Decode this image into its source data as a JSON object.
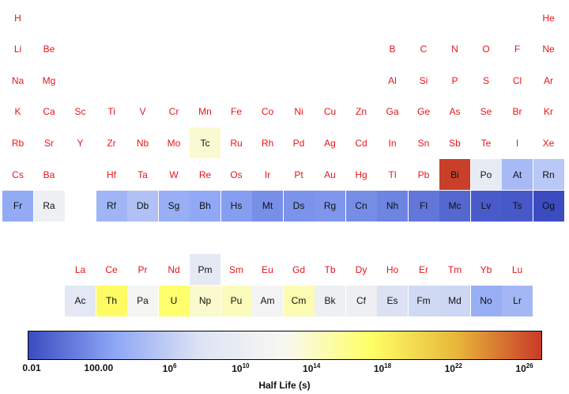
{
  "chart_data": {
    "type": "heatmap",
    "title": "",
    "colorbar": {
      "label": "Half Life (s)",
      "scale": "log10",
      "range_log10": [
        -2,
        27
      ],
      "ticks": [
        {
          "value_log10": -2,
          "label": "0.01"
        },
        {
          "value_log10": 2,
          "label": "100.00"
        },
        {
          "value_log10": 6,
          "base": "10",
          "exp": "6"
        },
        {
          "value_log10": 10,
          "base": "10",
          "exp": "10"
        },
        {
          "value_log10": 14,
          "base": "10",
          "exp": "14"
        },
        {
          "value_log10": 18,
          "base": "10",
          "exp": "18"
        },
        {
          "value_log10": 22,
          "base": "10",
          "exp": "22"
        },
        {
          "value_log10": 26,
          "base": "10",
          "exp": "26"
        }
      ],
      "colormap": [
        "#3b4cc0",
        "#8da6f5",
        "#dde3f4",
        "#f8f8f2",
        "#ffff66",
        "#e8b83a",
        "#c93a28"
      ]
    },
    "elements": [
      {
        "sym": "H",
        "row": 1,
        "col": 1,
        "stable": true
      },
      {
        "sym": "He",
        "row": 1,
        "col": 18,
        "stable": true
      },
      {
        "sym": "Li",
        "row": 2,
        "col": 1,
        "stable": true
      },
      {
        "sym": "Be",
        "row": 2,
        "col": 2,
        "stable": true
      },
      {
        "sym": "B",
        "row": 2,
        "col": 13,
        "stable": true
      },
      {
        "sym": "C",
        "row": 2,
        "col": 14,
        "stable": true
      },
      {
        "sym": "N",
        "row": 2,
        "col": 15,
        "stable": true
      },
      {
        "sym": "O",
        "row": 2,
        "col": 16,
        "stable": true
      },
      {
        "sym": "F",
        "row": 2,
        "col": 17,
        "stable": true
      },
      {
        "sym": "Ne",
        "row": 2,
        "col": 18,
        "stable": true
      },
      {
        "sym": "Na",
        "row": 3,
        "col": 1,
        "stable": true
      },
      {
        "sym": "Mg",
        "row": 3,
        "col": 2,
        "stable": true
      },
      {
        "sym": "Al",
        "row": 3,
        "col": 13,
        "stable": true
      },
      {
        "sym": "Si",
        "row": 3,
        "col": 14,
        "stable": true
      },
      {
        "sym": "P",
        "row": 3,
        "col": 15,
        "stable": true
      },
      {
        "sym": "S",
        "row": 3,
        "col": 16,
        "stable": true
      },
      {
        "sym": "Cl",
        "row": 3,
        "col": 17,
        "stable": true
      },
      {
        "sym": "Ar",
        "row": 3,
        "col": 18,
        "stable": true
      },
      {
        "sym": "K",
        "row": 4,
        "col": 1,
        "stable": true
      },
      {
        "sym": "Ca",
        "row": 4,
        "col": 2,
        "stable": true
      },
      {
        "sym": "Sc",
        "row": 4,
        "col": 3,
        "stable": true
      },
      {
        "sym": "Ti",
        "row": 4,
        "col": 4,
        "stable": true
      },
      {
        "sym": "V",
        "row": 4,
        "col": 5,
        "stable": true
      },
      {
        "sym": "Cr",
        "row": 4,
        "col": 6,
        "stable": true
      },
      {
        "sym": "Mn",
        "row": 4,
        "col": 7,
        "stable": true
      },
      {
        "sym": "Fe",
        "row": 4,
        "col": 8,
        "stable": true
      },
      {
        "sym": "Co",
        "row": 4,
        "col": 9,
        "stable": true
      },
      {
        "sym": "Ni",
        "row": 4,
        "col": 10,
        "stable": true
      },
      {
        "sym": "Cu",
        "row": 4,
        "col": 11,
        "stable": true
      },
      {
        "sym": "Zn",
        "row": 4,
        "col": 12,
        "stable": true
      },
      {
        "sym": "Ga",
        "row": 4,
        "col": 13,
        "stable": true
      },
      {
        "sym": "Ge",
        "row": 4,
        "col": 14,
        "stable": true
      },
      {
        "sym": "As",
        "row": 4,
        "col": 15,
        "stable": true
      },
      {
        "sym": "Se",
        "row": 4,
        "col": 16,
        "stable": true
      },
      {
        "sym": "Br",
        "row": 4,
        "col": 17,
        "stable": true
      },
      {
        "sym": "Kr",
        "row": 4,
        "col": 18,
        "stable": true
      },
      {
        "sym": "Rb",
        "row": 5,
        "col": 1,
        "stable": true
      },
      {
        "sym": "Sr",
        "row": 5,
        "col": 2,
        "stable": true
      },
      {
        "sym": "Y",
        "row": 5,
        "col": 3,
        "stable": true
      },
      {
        "sym": "Zr",
        "row": 5,
        "col": 4,
        "stable": true
      },
      {
        "sym": "Nb",
        "row": 5,
        "col": 5,
        "stable": true
      },
      {
        "sym": "Mo",
        "row": 5,
        "col": 6,
        "stable": true
      },
      {
        "sym": "Tc",
        "row": 5,
        "col": 7,
        "half_life_log10": 13.6
      },
      {
        "sym": "Ru",
        "row": 5,
        "col": 8,
        "stable": true
      },
      {
        "sym": "Rh",
        "row": 5,
        "col": 9,
        "stable": true
      },
      {
        "sym": "Pd",
        "row": 5,
        "col": 10,
        "stable": true
      },
      {
        "sym": "Ag",
        "row": 5,
        "col": 11,
        "stable": true
      },
      {
        "sym": "Cd",
        "row": 5,
        "col": 12,
        "stable": true
      },
      {
        "sym": "In",
        "row": 5,
        "col": 13,
        "stable": true
      },
      {
        "sym": "Sn",
        "row": 5,
        "col": 14,
        "stable": true
      },
      {
        "sym": "Sb",
        "row": 5,
        "col": 15,
        "stable": true
      },
      {
        "sym": "Te",
        "row": 5,
        "col": 16,
        "stable": true
      },
      {
        "sym": "I",
        "row": 5,
        "col": 17,
        "stable": true
      },
      {
        "sym": "Xe",
        "row": 5,
        "col": 18,
        "stable": true
      },
      {
        "sym": "Cs",
        "row": 6,
        "col": 1,
        "stable": true
      },
      {
        "sym": "Ba",
        "row": 6,
        "col": 2,
        "stable": true
      },
      {
        "sym": "Hf",
        "row": 6,
        "col": 4,
        "stable": true
      },
      {
        "sym": "Ta",
        "row": 6,
        "col": 5,
        "stable": true
      },
      {
        "sym": "W",
        "row": 6,
        "col": 6,
        "stable": true
      },
      {
        "sym": "Re",
        "row": 6,
        "col": 7,
        "stable": true
      },
      {
        "sym": "Os",
        "row": 6,
        "col": 8,
        "stable": true
      },
      {
        "sym": "Ir",
        "row": 6,
        "col": 9,
        "stable": true
      },
      {
        "sym": "Pt",
        "row": 6,
        "col": 10,
        "stable": true
      },
      {
        "sym": "Au",
        "row": 6,
        "col": 11,
        "stable": true
      },
      {
        "sym": "Hg",
        "row": 6,
        "col": 12,
        "stable": true
      },
      {
        "sym": "Tl",
        "row": 6,
        "col": 13,
        "stable": true
      },
      {
        "sym": "Pb",
        "row": 6,
        "col": 14,
        "stable": true
      },
      {
        "sym": "Bi",
        "row": 6,
        "col": 15,
        "half_life_log10": 26.8
      },
      {
        "sym": "Po",
        "row": 6,
        "col": 16,
        "half_life_log10": 9.4
      },
      {
        "sym": "At",
        "row": 6,
        "col": 17,
        "half_life_log10": 4.4
      },
      {
        "sym": "Rn",
        "row": 6,
        "col": 18,
        "half_life_log10": 5.5
      },
      {
        "sym": "Fr",
        "row": 7,
        "col": 1,
        "half_life_log10": 3.2
      },
      {
        "sym": "Ra",
        "row": 7,
        "col": 2,
        "half_life_log10": 10.7
      },
      {
        "sym": "Rf",
        "row": 7,
        "col": 4,
        "half_life_log10": 4.0
      },
      {
        "sym": "Db",
        "row": 7,
        "col": 5,
        "half_life_log10": 5.0
      },
      {
        "sym": "Sg",
        "row": 7,
        "col": 6,
        "half_life_log10": 3.5
      },
      {
        "sym": "Bh",
        "row": 7,
        "col": 7,
        "half_life_log10": 3.0
      },
      {
        "sym": "Hs",
        "row": 7,
        "col": 8,
        "half_life_log10": 2.4
      },
      {
        "sym": "Mt",
        "row": 7,
        "col": 9,
        "half_life_log10": 1.6
      },
      {
        "sym": "Ds",
        "row": 7,
        "col": 10,
        "half_life_log10": 1.8
      },
      {
        "sym": "Rg",
        "row": 7,
        "col": 11,
        "half_life_log10": 2.0
      },
      {
        "sym": "Cn",
        "row": 7,
        "col": 12,
        "half_life_log10": 1.5
      },
      {
        "sym": "Nh",
        "row": 7,
        "col": 13,
        "half_life_log10": 1.0
      },
      {
        "sym": "Fl",
        "row": 7,
        "col": 14,
        "half_life_log10": 0.3
      },
      {
        "sym": "Mc",
        "row": 7,
        "col": 15,
        "half_life_log10": -0.5
      },
      {
        "sym": "Lv",
        "row": 7,
        "col": 16,
        "half_life_log10": -1.2
      },
      {
        "sym": "Ts",
        "row": 7,
        "col": 17,
        "half_life_log10": -1.3
      },
      {
        "sym": "Og",
        "row": 7,
        "col": 18,
        "half_life_log10": -2.0
      },
      {
        "sym": "La",
        "row": 9,
        "col": 3,
        "stable": true
      },
      {
        "sym": "Ce",
        "row": 9,
        "col": 4,
        "stable": true
      },
      {
        "sym": "Pr",
        "row": 9,
        "col": 5,
        "stable": true
      },
      {
        "sym": "Nd",
        "row": 9,
        "col": 6,
        "stable": true
      },
      {
        "sym": "Pm",
        "row": 9,
        "col": 7,
        "half_life_log10": 9.0
      },
      {
        "sym": "Sm",
        "row": 9,
        "col": 8,
        "stable": true
      },
      {
        "sym": "Eu",
        "row": 9,
        "col": 9,
        "stable": true
      },
      {
        "sym": "Gd",
        "row": 9,
        "col": 10,
        "stable": true
      },
      {
        "sym": "Tb",
        "row": 9,
        "col": 11,
        "stable": true
      },
      {
        "sym": "Dy",
        "row": 9,
        "col": 12,
        "stable": true
      },
      {
        "sym": "Ho",
        "row": 9,
        "col": 13,
        "stable": true
      },
      {
        "sym": "Er",
        "row": 9,
        "col": 14,
        "stable": true
      },
      {
        "sym": "Tm",
        "row": 9,
        "col": 15,
        "stable": true
      },
      {
        "sym": "Yb",
        "row": 9,
        "col": 16,
        "stable": true
      },
      {
        "sym": "Lu",
        "row": 9,
        "col": 17,
        "stable": true
      },
      {
        "sym": "Ac",
        "row": 10,
        "col": 3,
        "half_life_log10": 8.8
      },
      {
        "sym": "Th",
        "row": 10,
        "col": 4,
        "half_life_log10": 17.6
      },
      {
        "sym": "Pa",
        "row": 10,
        "col": 5,
        "half_life_log10": 12.0
      },
      {
        "sym": "U",
        "row": 10,
        "col": 6,
        "half_life_log10": 17.1
      },
      {
        "sym": "Np",
        "row": 10,
        "col": 7,
        "half_life_log10": 13.8
      },
      {
        "sym": "Pu",
        "row": 10,
        "col": 8,
        "half_life_log10": 14.4
      },
      {
        "sym": "Am",
        "row": 10,
        "col": 9,
        "half_life_log10": 11.4
      },
      {
        "sym": "Cm",
        "row": 10,
        "col": 10,
        "half_life_log10": 14.7
      },
      {
        "sym": "Bk",
        "row": 10,
        "col": 11,
        "half_life_log10": 10.6
      },
      {
        "sym": "Cf",
        "row": 10,
        "col": 12,
        "half_life_log10": 10.5
      },
      {
        "sym": "Es",
        "row": 10,
        "col": 13,
        "half_life_log10": 7.6
      },
      {
        "sym": "Fm",
        "row": 10,
        "col": 14,
        "half_life_log10": 6.9
      },
      {
        "sym": "Md",
        "row": 10,
        "col": 15,
        "half_life_log10": 6.7
      },
      {
        "sym": "No",
        "row": 10,
        "col": 16,
        "half_life_log10": 3.5
      },
      {
        "sym": "Lr",
        "row": 10,
        "col": 17,
        "half_life_log10": 4.2
      }
    ]
  }
}
